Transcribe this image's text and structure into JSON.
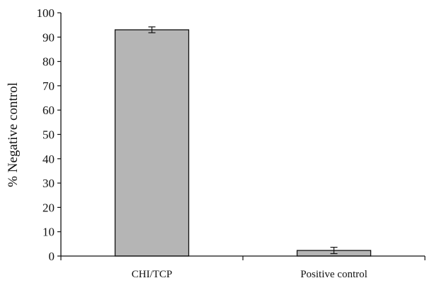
{
  "chart_data": {
    "type": "bar",
    "categories": [
      "CHI/TCP",
      "Positive control"
    ],
    "values": [
      93.0,
      2.3
    ],
    "errors": [
      1.2,
      1.3
    ],
    "title": "",
    "xlabel": "",
    "ylabel": "% Negative control",
    "ylim": [
      0,
      100
    ],
    "yticks": [
      0,
      10,
      20,
      30,
      40,
      50,
      60,
      70,
      80,
      90,
      100
    ],
    "grid": false,
    "colors": {
      "bar_fill": "#b5b5b5",
      "bar_stroke": "#111111",
      "axis": "#111111"
    }
  }
}
